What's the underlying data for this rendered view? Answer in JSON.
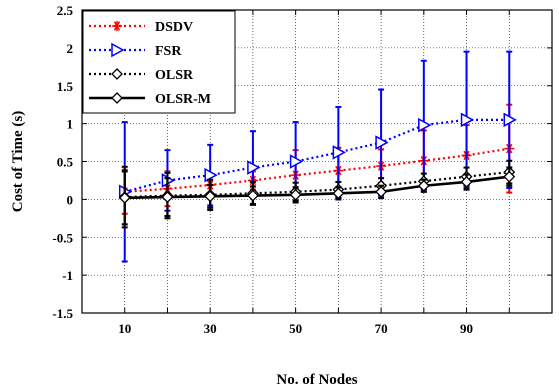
{
  "chart_data": {
    "type": "line",
    "title": "",
    "xlabel": "No. of Nodes",
    "ylabel": "Cost of Time (s)",
    "xlim": [
      0,
      110
    ],
    "ylim": [
      -1.5,
      2.5
    ],
    "x_ticks": [
      "10",
      "30",
      "50",
      "70",
      "90"
    ],
    "y_ticks": [
      "-1.5",
      "-1",
      "-0.5",
      "0",
      "0.5",
      "1",
      "1.5",
      "2",
      "2.5"
    ],
    "grid": true,
    "legend_position": "top-left",
    "x": [
      10,
      20,
      30,
      40,
      50,
      60,
      70,
      80,
      90,
      100
    ],
    "series": [
      {
        "name": "DSDV",
        "color": "#ff0000",
        "line_style": "dotted",
        "marker": "asterisk",
        "values": [
          0.1,
          0.14,
          0.19,
          0.25,
          0.32,
          0.38,
          0.44,
          0.51,
          0.58,
          0.67
        ],
        "errors": [
          0.29,
          0.23,
          0.15,
          0.12,
          0.33,
          0.3,
          0.22,
          0.4,
          0.4,
          0.58
        ]
      },
      {
        "name": "FSR",
        "color": "#0000ff",
        "line_style": "dotted",
        "marker": "triangle-right",
        "values": [
          0.1,
          0.25,
          0.32,
          0.42,
          0.5,
          0.62,
          0.75,
          0.98,
          1.05,
          1.05
        ],
        "errors": [
          0.92,
          0.4,
          0.4,
          0.48,
          0.52,
          0.6,
          0.7,
          0.85,
          0.9,
          0.9
        ]
      },
      {
        "name": "OLSR",
        "color": "#000000",
        "line_style": "dotted",
        "marker": "diamond-open",
        "values": [
          0.03,
          0.05,
          0.06,
          0.08,
          0.1,
          0.13,
          0.18,
          0.24,
          0.3,
          0.36
        ],
        "errors": [
          0.4,
          0.3,
          0.2,
          0.15,
          0.12,
          0.1,
          0.1,
          0.1,
          0.12,
          0.15
        ]
      },
      {
        "name": "OLSR-M",
        "color": "#000000",
        "line_style": "solid",
        "marker": "diamond-open",
        "values": [
          0.02,
          0.03,
          0.04,
          0.05,
          0.06,
          0.08,
          0.1,
          0.18,
          0.23,
          0.3
        ],
        "errors": [
          0.35,
          0.25,
          0.15,
          0.12,
          0.1,
          0.08,
          0.08,
          0.08,
          0.1,
          0.12
        ]
      }
    ]
  }
}
